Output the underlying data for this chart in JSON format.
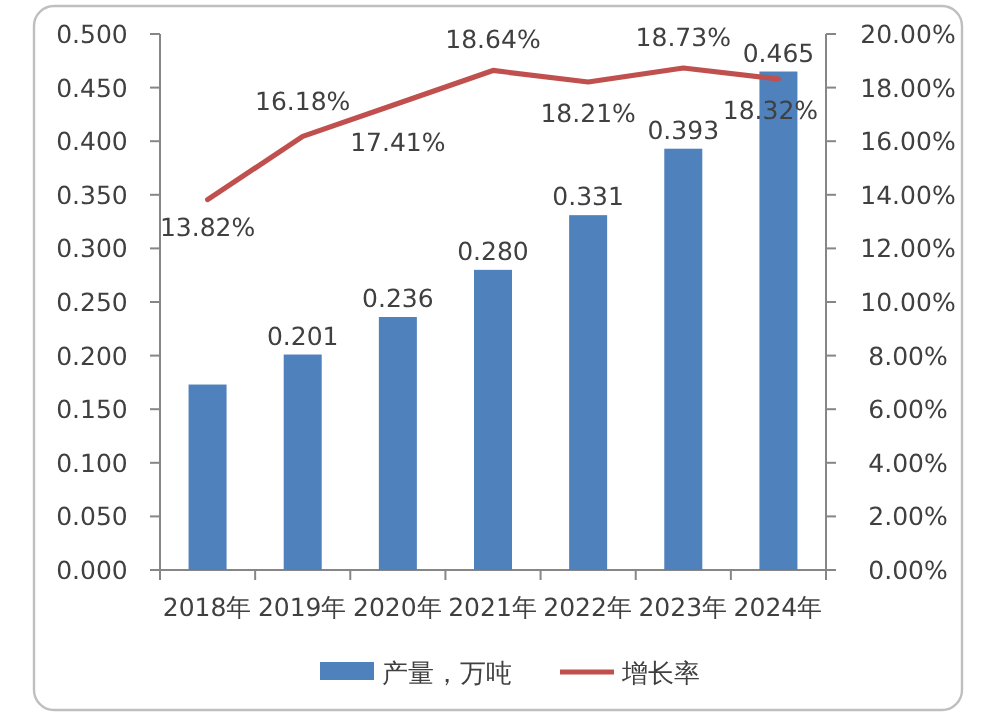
{
  "chart_data": {
    "type": "bar",
    "categories": [
      "2018年",
      "2019年",
      "2020年",
      "2021年",
      "2022年",
      "2023年",
      "2024年"
    ],
    "series": [
      {
        "name": "产量，万吨",
        "color": "#4f81bd",
        "values": [
          0.173,
          0.201,
          0.236,
          0.28,
          0.331,
          0.393,
          0.465
        ],
        "value_labels": [
          null,
          "0.201",
          "0.236",
          "0.280",
          "0.331",
          "0.393",
          "0.465"
        ]
      },
      {
        "name": "增长率",
        "type": "line",
        "axis": "y2",
        "color": "#c0504d",
        "values": [
          13.82,
          16.18,
          17.41,
          18.64,
          18.21,
          18.73,
          18.32
        ],
        "value_labels": [
          "13.82%",
          "16.18%",
          "17.41%",
          "18.64%",
          "18.21%",
          "18.73%",
          "18.32%"
        ]
      }
    ],
    "ylim": [
      0,
      0.5
    ],
    "yticks": [
      {
        "value": 0,
        "label": "0.000"
      },
      {
        "value": 0.05,
        "label": "0.050"
      },
      {
        "value": 0.1,
        "label": "0.100"
      },
      {
        "value": 0.15,
        "label": "0.150"
      },
      {
        "value": 0.2,
        "label": "0.200"
      },
      {
        "value": 0.25,
        "label": "0.250"
      },
      {
        "value": 0.3,
        "label": "0.300"
      },
      {
        "value": 0.35,
        "label": "0.350"
      },
      {
        "value": 0.4,
        "label": "0.400"
      },
      {
        "value": 0.45,
        "label": "0.450"
      },
      {
        "value": 0.5,
        "label": "0.500"
      }
    ],
    "y2lim": [
      0,
      20
    ],
    "y2ticks": [
      {
        "value": 0,
        "label": "0.00%"
      },
      {
        "value": 2,
        "label": "2.00%"
      },
      {
        "value": 4,
        "label": "4.00%"
      },
      {
        "value": 6,
        "label": "6.00%"
      },
      {
        "value": 8,
        "label": "8.00%"
      },
      {
        "value": 10,
        "label": "10.00%"
      },
      {
        "value": 12,
        "label": "12.00%"
      },
      {
        "value": 14,
        "label": "14.00%"
      },
      {
        "value": 16,
        "label": "16.00%"
      },
      {
        "value": 18,
        "label": "18.00%"
      },
      {
        "value": 20,
        "label": "20.00%"
      }
    ],
    "grid": false,
    "legend": "bottom"
  }
}
